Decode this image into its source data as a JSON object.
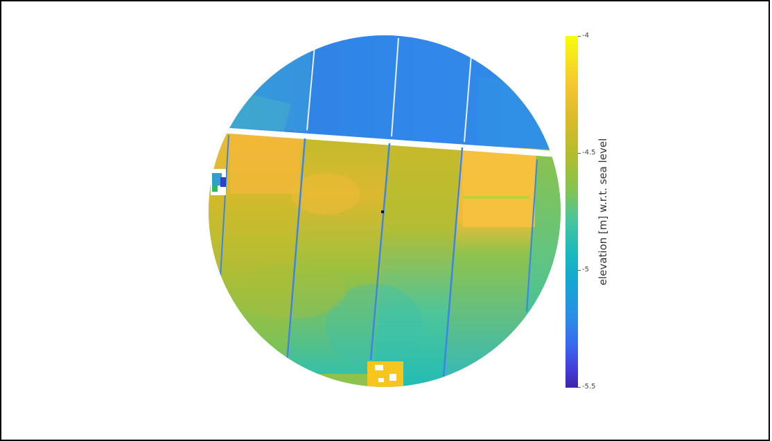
{
  "image": {
    "subject": "aerial elevation map of agricultural fields clipped to a circle",
    "colormap": "parula"
  },
  "colorbar": {
    "label": "elevation [m] w.r.t. sea level",
    "ticks": [
      "-4",
      "-4.5",
      "-5",
      "-5.5"
    ],
    "min": -5.5,
    "max": -4,
    "colors": {
      "high": "#f9fb0e",
      "mid": "#4bc59a",
      "low": "#3e26a8"
    }
  }
}
